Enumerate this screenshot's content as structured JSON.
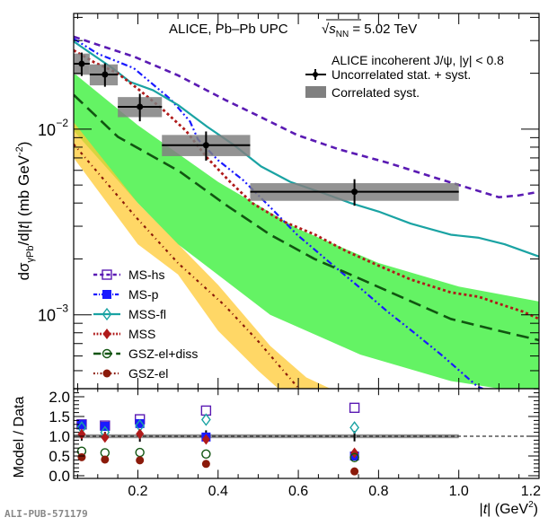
{
  "chart_data": {
    "type": "line",
    "title": "ALICE, Pb–Pb UPC",
    "energy_label": {
      "prefix": "√",
      "s": "s",
      "sub": "NN",
      "suffix": " = 5.02 TeV"
    },
    "xlabel": {
      "text_before": "|",
      "italic": "t",
      "text_after": "| (GeV",
      "sup": "2",
      "close": ")"
    },
    "ylabel": {
      "d": "dσ",
      "sub": "γPb",
      "rest": "/d|",
      "italic": "t",
      "rest2": "| (mb GeV",
      "sup": "-2",
      "close": ")"
    },
    "xlim": [
      0.04,
      1.2
    ],
    "ylim": [
      0.0004,
      0.042
    ],
    "yscale": "log",
    "xticks": [
      0.2,
      0.4,
      0.6,
      0.8,
      1.0,
      1.2
    ],
    "xtick_labels": [
      "0.2",
      "0.4",
      "0.6",
      "0.8",
      "1.0",
      "1.2"
    ],
    "yticks_major": [
      0.01,
      0.001
    ],
    "ytick_labels": [
      {
        "base": "10",
        "exp": "−2"
      },
      {
        "base": "10",
        "exp": "−3"
      }
    ],
    "legend_top": {
      "header": "ALICE incoherent J/ψ, |y| < 0.8",
      "entries": [
        "Uncorrelated stat. + syst.",
        "Correlated syst."
      ]
    },
    "data": {
      "name": "ALICE incoherent J/psi",
      "points": [
        {
          "t": 0.06,
          "t_lo": 0.04,
          "t_hi": 0.08,
          "value": 0.0225,
          "err": 0.0025,
          "corr": 0.0022
        },
        {
          "t": 0.118,
          "t_lo": 0.08,
          "t_hi": 0.15,
          "value": 0.0197,
          "err": 0.0022,
          "corr": 0.0019
        },
        {
          "t": 0.205,
          "t_lo": 0.15,
          "t_hi": 0.26,
          "value": 0.0132,
          "err": 0.0018,
          "corr": 0.0012
        },
        {
          "t": 0.37,
          "t_lo": 0.26,
          "t_hi": 0.48,
          "value": 0.0082,
          "err": 0.0012,
          "corr": 0.0008
        },
        {
          "t": 0.74,
          "t_lo": 0.48,
          "t_hi": 1.0,
          "value": 0.0046,
          "err": 0.0006,
          "corr": 0.00035
        }
      ]
    },
    "bands": [
      {
        "name": "GSZ-el+diss band",
        "color": "#22ee22",
        "opacity": 0.7,
        "upper": [
          [
            0.04,
            0.0201
          ],
          [
            0.2,
            0.0105
          ],
          [
            0.4,
            0.0052
          ],
          [
            0.6,
            0.0029
          ],
          [
            0.8,
            0.0019
          ],
          [
            1.0,
            0.00142
          ],
          [
            1.2,
            0.00118
          ]
        ],
        "lower": [
          [
            0.04,
            0.0098
          ],
          [
            0.2,
            0.004
          ],
          [
            0.3,
            0.0024
          ],
          [
            0.53,
            0.001
          ],
          [
            0.755,
            0.00061
          ],
          [
            0.98,
            0.00044
          ],
          [
            1.2,
            0.00037
          ]
        ]
      },
      {
        "name": "GSZ-el band",
        "color": "#ffc933",
        "opacity": 0.75,
        "upper": [
          [
            0.04,
            0.0109
          ],
          [
            0.2,
            0.004
          ],
          [
            0.4,
            0.00145
          ],
          [
            0.53,
            0.00068
          ],
          [
            0.62,
            0.00046
          ],
          [
            0.68,
            0.0004
          ]
        ],
        "lower": [
          [
            0.04,
            0.007
          ],
          [
            0.2,
            0.0024
          ],
          [
            0.3,
            0.00165
          ],
          [
            0.4,
            0.00082
          ],
          [
            0.5,
            0.0005
          ],
          [
            0.55,
            0.0004
          ]
        ]
      }
    ],
    "series": [
      {
        "name": "MS-hs",
        "color": "#5a1ab3",
        "dash": "7,5",
        "width": 2.6,
        "marker": "open-square",
        "points": [
          [
            0.04,
            0.0315
          ],
          [
            0.1,
            0.0285
          ],
          [
            0.19,
            0.0246
          ],
          [
            0.3,
            0.0195
          ],
          [
            0.417,
            0.0144
          ],
          [
            0.5,
            0.0118
          ],
          [
            0.597,
            0.0093
          ],
          [
            0.7,
            0.0078
          ],
          [
            0.822,
            0.0066
          ],
          [
            0.95,
            0.0054
          ],
          [
            1.07,
            0.0045
          ],
          [
            1.1,
            0.0043
          ],
          [
            1.15,
            0.0044
          ],
          [
            1.2,
            0.0046
          ]
        ]
      },
      {
        "name": "MS-p",
        "color": "#1a1aff",
        "dash": "7,3,2,3,2,3",
        "width": 2.2,
        "marker": "filled-square",
        "points": [
          [
            0.04,
            0.0307
          ],
          [
            0.1,
            0.0255
          ],
          [
            0.19,
            0.0213
          ],
          [
            0.283,
            0.0144
          ],
          [
            0.33,
            0.011
          ],
          [
            0.35,
            0.0088
          ],
          [
            0.4,
            0.0068
          ],
          [
            0.463,
            0.0053
          ],
          [
            0.53,
            0.0038
          ],
          [
            0.597,
            0.0027
          ],
          [
            0.68,
            0.0019
          ],
          [
            0.755,
            0.00139
          ],
          [
            0.82,
            0.00105
          ],
          [
            0.889,
            0.0008
          ],
          [
            0.96,
            0.0006
          ],
          [
            1.047,
            0.00041
          ],
          [
            1.06,
            0.0004
          ]
        ]
      },
      {
        "name": "MSS-fl",
        "color": "#1aa3a3",
        "dash": "",
        "width": 2.2,
        "marker": "open-diamond",
        "points": [
          [
            0.04,
            0.0297
          ],
          [
            0.09,
            0.025
          ],
          [
            0.137,
            0.0213
          ],
          [
            0.18,
            0.018
          ],
          [
            0.238,
            0.0162
          ],
          [
            0.3,
            0.0135
          ],
          [
            0.373,
            0.0103
          ],
          [
            0.44,
            0.0082
          ],
          [
            0.507,
            0.0063
          ],
          [
            0.58,
            0.0052
          ],
          [
            0.665,
            0.0045
          ],
          [
            0.73,
            0.004
          ],
          [
            0.8,
            0.0036
          ],
          [
            0.88,
            0.0031
          ],
          [
            0.98,
            0.0027
          ],
          [
            1.05,
            0.0026
          ],
          [
            1.114,
            0.0024
          ],
          [
            1.2,
            0.00206
          ]
        ]
      },
      {
        "name": "MSS",
        "color": "#b01a1a",
        "dash": "3,3",
        "width": 2.8,
        "marker": "filled-diamond",
        "points": [
          [
            0.04,
            0.0266
          ],
          [
            0.09,
            0.023
          ],
          [
            0.148,
            0.0201
          ],
          [
            0.2,
            0.0165
          ],
          [
            0.26,
            0.0129
          ],
          [
            0.32,
            0.0098
          ],
          [
            0.373,
            0.007
          ],
          [
            0.43,
            0.0052
          ],
          [
            0.485,
            0.004
          ],
          [
            0.56,
            0.0032
          ],
          [
            0.642,
            0.0027
          ],
          [
            0.72,
            0.0022
          ],
          [
            0.8,
            0.00184
          ],
          [
            0.88,
            0.00155
          ],
          [
            0.98,
            0.00132
          ],
          [
            1.05,
            0.00125
          ],
          [
            1.114,
            0.00112
          ],
          [
            1.16,
            0.00104
          ],
          [
            1.2,
            0.00095
          ]
        ]
      },
      {
        "name": "GSZ-el+diss",
        "color": "#115511",
        "dash": "14,7",
        "width": 2.6,
        "marker": "open-circle",
        "points": [
          [
            0.04,
            0.0153
          ],
          [
            0.15,
            0.0091
          ],
          [
            0.305,
            0.0059
          ],
          [
            0.42,
            0.0039
          ],
          [
            0.53,
            0.0027
          ],
          [
            0.64,
            0.002
          ],
          [
            0.755,
            0.00156
          ],
          [
            0.87,
            0.00121
          ],
          [
            0.98,
            0.00095
          ],
          [
            1.09,
            0.00083
          ],
          [
            1.2,
            0.00073
          ]
        ]
      },
      {
        "name": "GSZ-el",
        "color": "#8b1a0a",
        "dash": "3,4,1,4",
        "width": 2.2,
        "marker": "filled-circle",
        "points": [
          [
            0.04,
            0.0083
          ],
          [
            0.12,
            0.0052
          ],
          [
            0.193,
            0.0034
          ],
          [
            0.3,
            0.0019
          ],
          [
            0.417,
            0.00112
          ],
          [
            0.5,
            0.00072
          ],
          [
            0.597,
            0.00041
          ],
          [
            0.6,
            0.0004
          ]
        ]
      }
    ],
    "ratio_panel": {
      "ylabel": "Model / Data",
      "ylim": [
        0.0,
        2.2
      ],
      "yticks": [
        0.0,
        0.5,
        1.0,
        1.5,
        2.0
      ],
      "ytick_labels": [
        "0.0",
        "0.5",
        "1.0",
        "1.5",
        "2.0"
      ],
      "reference_line": 1.0,
      "data_unc": [
        0.11,
        0.11,
        0.14,
        0.15,
        0.13
      ],
      "data_corr": 0.05,
      "ratios": [
        {
          "name": "MS-hs",
          "values": [
            1.3,
            1.27,
            1.43,
            1.65,
            1.72
          ]
        },
        {
          "name": "MS-p",
          "values": [
            1.3,
            1.25,
            1.32,
            0.98,
            0.5
          ]
        },
        {
          "name": "MSS-fl",
          "values": [
            1.22,
            1.1,
            1.27,
            1.42,
            1.22
          ]
        },
        {
          "name": "MSS",
          "values": [
            1.05,
            0.97,
            1.06,
            0.92,
            0.58
          ]
        },
        {
          "name": "GSZ-el+diss",
          "values": [
            0.62,
            0.58,
            0.59,
            0.55,
            0.46
          ]
        },
        {
          "name": "GSZ-el",
          "values": [
            0.47,
            0.41,
            0.39,
            0.3,
            0.11
          ]
        }
      ]
    },
    "legend_models": {
      "placement": "lower-left",
      "entries": [
        "MS-hs",
        "MS-p",
        "MSS-fl",
        "MSS",
        "GSZ-el+diss",
        "GSZ-el"
      ]
    },
    "data_color": "#000000",
    "corr_color": "#808080"
  },
  "footer": {
    "pub_id": "ALI-PUB-571179"
  }
}
